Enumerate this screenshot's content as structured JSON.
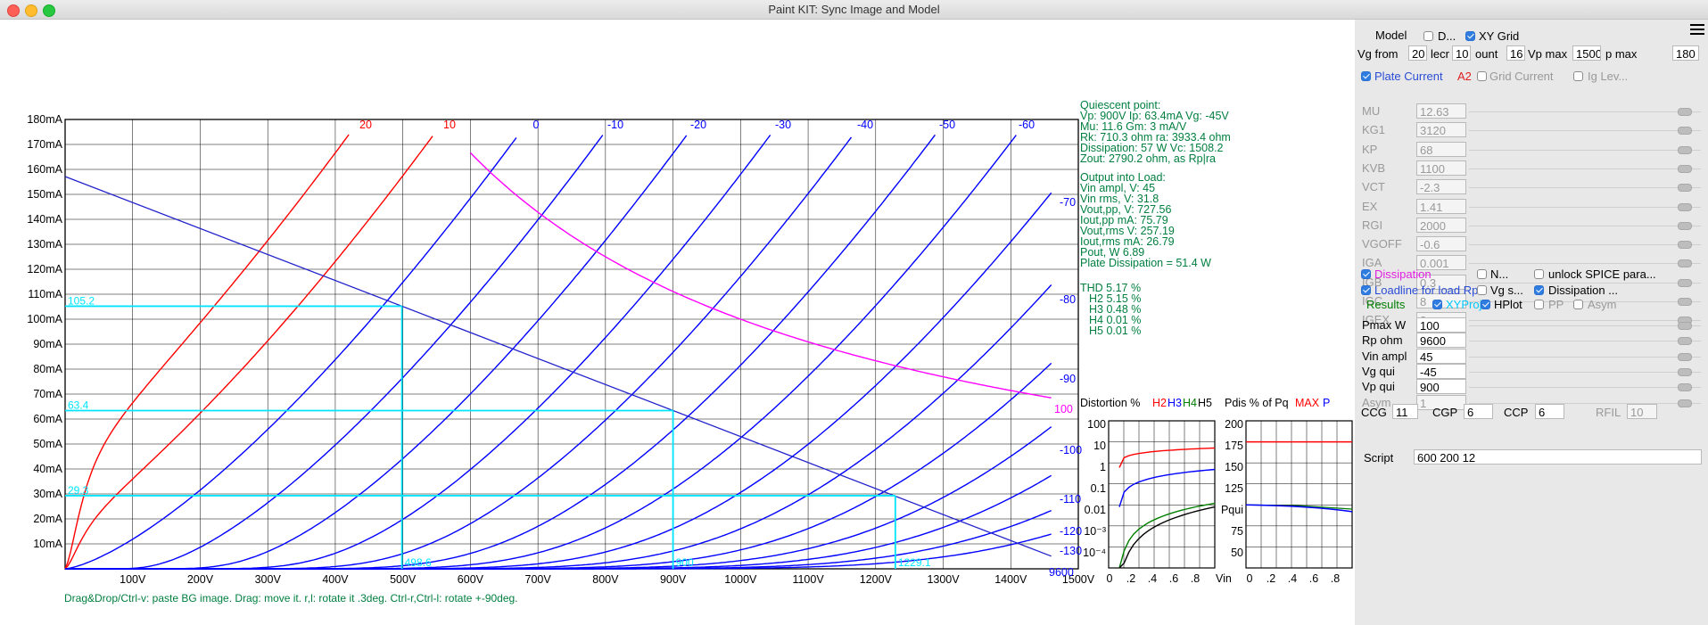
{
  "window": {
    "title": "Paint KIT: Sync Image and Model"
  },
  "plot": {
    "y_labels": [
      "180mA",
      "170mA",
      "160mA",
      "150mA",
      "140mA",
      "130mA",
      "120mA",
      "110mA",
      "100mA",
      "90mA",
      "80mA",
      "70mA",
      "60mA",
      "50mA",
      "40mA",
      "30mA",
      "20mA",
      "10mA"
    ],
    "x_labels": [
      "100V",
      "200V",
      "300V",
      "400V",
      "500V",
      "600V",
      "700V",
      "800V",
      "900V",
      "1000V",
      "1100V",
      "1200V",
      "1300V",
      "1400V",
      "1500V"
    ],
    "curve_labels_red": [
      "20",
      "10"
    ],
    "curve_labels_top": [
      "0",
      "-10",
      "-20",
      "-30",
      "-40",
      "-50",
      "-60"
    ],
    "curve_labels_right": [
      "-70",
      "-80",
      "-90",
      "-100",
      "-110",
      "-120",
      "-130"
    ],
    "dissipation_label": "100",
    "loadline_label": "9600",
    "proj": {
      "i_high": "105.2",
      "i_q": "63.4",
      "i_low": "29.3",
      "v_low": "498.6",
      "v_q": "900",
      "v_high": "1229.1"
    },
    "footer": "Drag&Drop/Ctrl-v: paste BG image. Drag: move it. r,l: rotate it .3deg. Ctrl-r,Ctrl-l: rotate +-90deg."
  },
  "info": {
    "quiescent": [
      "Quiescent point:",
      "Vp: 900V  Ip: 63.4mA  Vg: -45V",
      "Mu: 11.6 Gm: 3 mA/V",
      "Rk: 710.3 ohm ra: 3933.4 ohm",
      "Dissipation: 57 W Vc: 1508.2",
      "Zout: 2790.2 ohm, as Rp|ra"
    ],
    "output": [
      "Output into Load:",
      "Vin ampl, V: 45",
      "Vin rms,  V: 31.8",
      "Vout,pp,   V: 727.56",
      "Iout,pp    mA: 75.79",
      "Vout,rms   V: 257.19",
      "Iout,rms  mA: 26.79",
      "Pout, W      6.89",
      "Plate Dissipation = 51.4 W"
    ],
    "thd": [
      "THD 5.17 %",
      "H2 5.15 %",
      "H3 0.48 %",
      "H4 0.01 %",
      "H5 0.01 %"
    ]
  },
  "distortion": {
    "title": "Distortion %",
    "h_labels": [
      "H2",
      "H3",
      "H4",
      "H5"
    ],
    "y_labels": [
      "100",
      "10",
      "1",
      "0.1",
      "0.01",
      "10⁻³",
      "10⁻⁴"
    ],
    "x_labels": [
      "0",
      ".2",
      ".4",
      ".6",
      ".8"
    ],
    "x_unit": "Vin"
  },
  "pdis": {
    "title": "Pdis % of Pq",
    "max_label": "MAX",
    "p_label": "P",
    "y_labels": [
      "200",
      "175",
      "150",
      "125",
      "Pqui",
      "75",
      "50"
    ],
    "x_labels": [
      "0",
      ".2",
      ".4",
      ".6",
      ".8"
    ],
    "x_unit": "V"
  },
  "panel": {
    "model_label": "Model",
    "d_label": "D...",
    "xygrid_label": "XY Grid",
    "vg_from_label": "Vg from",
    "vg_from": "20",
    "decr_label": "lecr",
    "decr": "10",
    "count_label": "ount",
    "count": "16",
    "vpmax_label": "Vp max",
    "vpmax": "1500",
    "ipmax_label": "p max",
    "ipmax": "180",
    "plate_current_label": "Plate Current",
    "a2_label": "A2",
    "grid_current_label": "Grid Current",
    "ig_level_label": "Ig Lev...",
    "params": [
      {
        "name": "MU",
        "value": "12.63"
      },
      {
        "name": "KG1",
        "value": "3120"
      },
      {
        "name": "KP",
        "value": "68"
      },
      {
        "name": "KVB",
        "value": "1100"
      },
      {
        "name": "VCT",
        "value": "-2.3"
      },
      {
        "name": "EX",
        "value": "1.41"
      },
      {
        "name": "RGI",
        "value": "2000"
      },
      {
        "name": "VGOFF",
        "value": "-0.6"
      },
      {
        "name": "IGA",
        "value": "0.001"
      },
      {
        "name": "IGB",
        "value": "0.3"
      },
      {
        "name": "IGC",
        "value": "8"
      },
      {
        "name": "IGEX",
        "value": "2"
      }
    ],
    "dissipation_label": "Dissipation",
    "n_label": "N...",
    "unlock_label": "unlock SPICE para...",
    "loadline_label": "Loadline for load Rp",
    "vgs_label": "Vg s...",
    "dissipation2_label": "Dissipation ...",
    "results_label": "Results",
    "xyproj_label": "XYProj",
    "hplot_label": "HPlot",
    "pp_label": "PP",
    "asym_label": "Asym",
    "results": [
      {
        "name": "Pmax W",
        "value": "100"
      },
      {
        "name": "Rp ohm",
        "value": "9600"
      },
      {
        "name": "Vin ampl",
        "value": "45"
      },
      {
        "name": "Vg qui",
        "value": "-45"
      },
      {
        "name": "Vp qui",
        "value": "900"
      },
      {
        "name": "Asym",
        "value": "1"
      }
    ],
    "ccg_label": "CCG",
    "ccg": "11",
    "cgp_label": "CGP",
    "cgp": "6",
    "ccp_label": "CCP",
    "ccp": "6",
    "rfil_label": "RFIL",
    "rfil": "10",
    "script_label": "Script",
    "script": "600 200 12"
  },
  "colors": {
    "grid": "#000000",
    "curve": "#0000ff",
    "positive_curve": "#ff0000",
    "dissipation": "#ff00ff",
    "projection": "#00ffff",
    "info_text": "#007f3f"
  }
}
